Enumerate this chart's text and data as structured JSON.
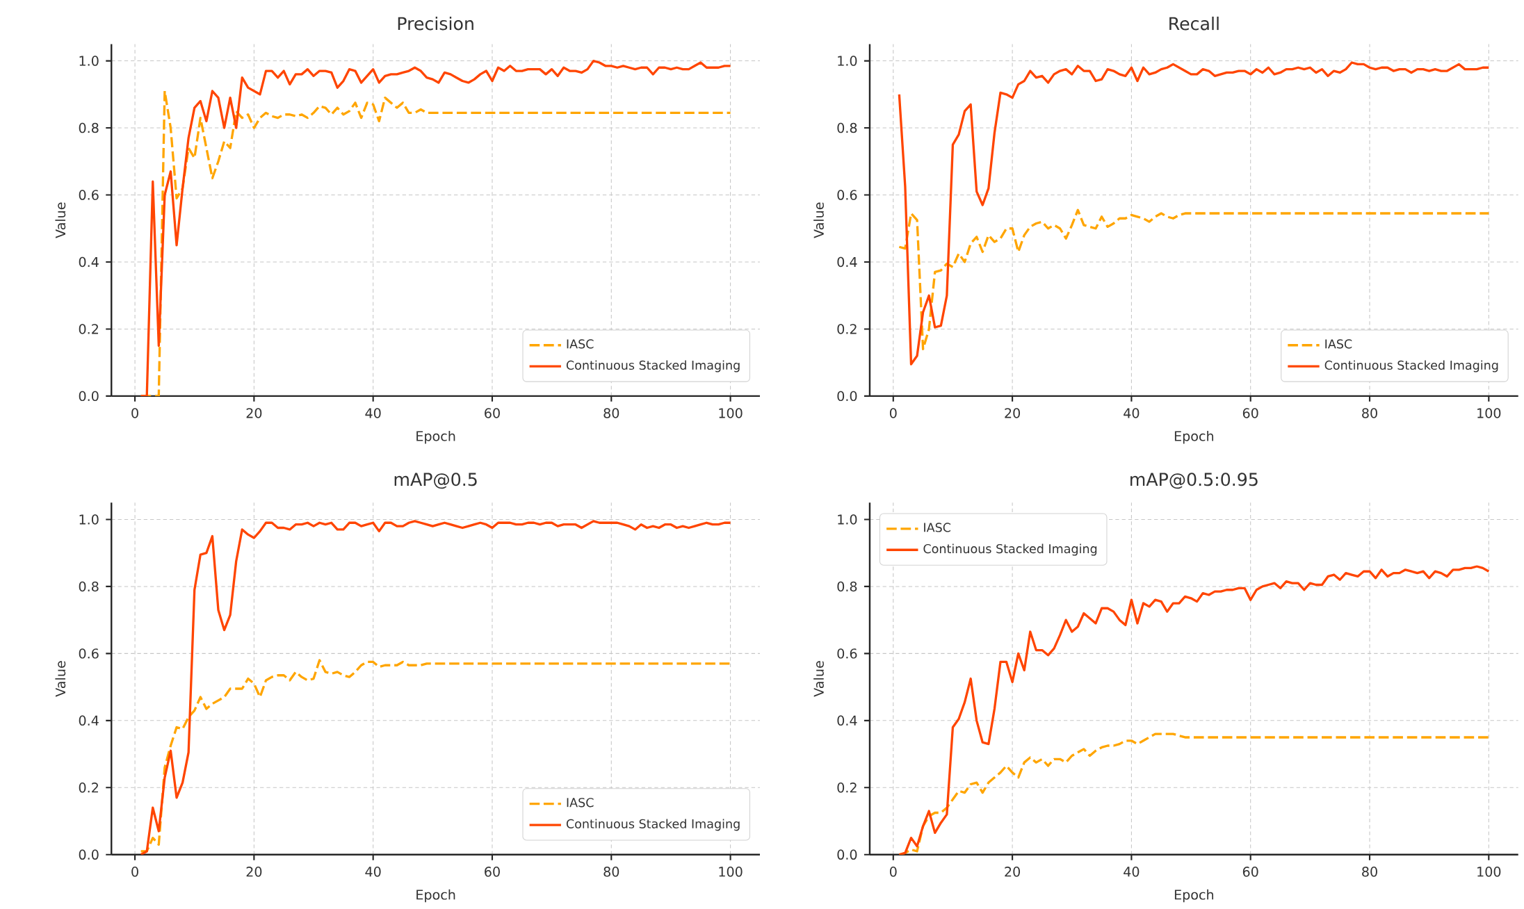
{
  "chart_data": [
    {
      "type": "line",
      "title": "Precision",
      "xlabel": "Epoch",
      "ylabel": "Value",
      "xlim": [
        -3.95,
        104.95
      ],
      "ylim": [
        0,
        1.05
      ],
      "xticks": [
        0,
        20,
        40,
        60,
        80,
        100
      ],
      "yticks": [
        {
          "value": 0,
          "label": "0.0"
        },
        {
          "value": 0.2,
          "label": "0.2"
        },
        {
          "value": 0.4,
          "label": "0.4"
        },
        {
          "value": 0.6,
          "label": "0.6"
        },
        {
          "value": 0.8,
          "label": "0.8"
        },
        {
          "value": 1.0,
          "label": "1.0"
        }
      ],
      "grid": true,
      "legend": "bottom right",
      "x": [
        1,
        2,
        3,
        4,
        5,
        6,
        7,
        8,
        9,
        10,
        11,
        12,
        13,
        14,
        15,
        16,
        17,
        18,
        19,
        20,
        21,
        22,
        23,
        24,
        25,
        26,
        27,
        28,
        29,
        30,
        31,
        32,
        33,
        34,
        35,
        36,
        37,
        38,
        39,
        40,
        41,
        42,
        43,
        44,
        45,
        46,
        47,
        48,
        49,
        50,
        51,
        52,
        53,
        54,
        55,
        56,
        57,
        58,
        59,
        60,
        61,
        62,
        63,
        64,
        65,
        66,
        67,
        68,
        69,
        70,
        71,
        72,
        73,
        74,
        75,
        76,
        77,
        78,
        79,
        80,
        81,
        82,
        83,
        84,
        85,
        86,
        87,
        88,
        89,
        90,
        91,
        92,
        93,
        94,
        95,
        96,
        97,
        98,
        99,
        100
      ],
      "series": [
        {
          "name": "IASC",
          "color": "#ffa500",
          "line_style": "dashed",
          "x": [
            1,
            2,
            3,
            4,
            5,
            6,
            7,
            8,
            9,
            10,
            11,
            12,
            13,
            14,
            15,
            16,
            17,
            18,
            19,
            20,
            21,
            22,
            23,
            24,
            25,
            26,
            27,
            28,
            29,
            30,
            31,
            32,
            33,
            34,
            35,
            36,
            37,
            38,
            39,
            40,
            41,
            42,
            43,
            44,
            45,
            46,
            47,
            48,
            49,
            50,
            100
          ],
          "values": [
            0,
            0,
            0,
            0,
            0.91,
            0.8,
            0.59,
            0.62,
            0.74,
            0.71,
            0.83,
            0.74,
            0.65,
            0.7,
            0.76,
            0.74,
            0.85,
            0.83,
            0.84,
            0.8,
            0.83,
            0.845,
            0.835,
            0.83,
            0.84,
            0.84,
            0.835,
            0.84,
            0.83,
            0.845,
            0.865,
            0.86,
            0.84,
            0.86,
            0.84,
            0.85,
            0.875,
            0.83,
            0.875,
            0.87,
            0.82,
            0.89,
            0.875,
            0.86,
            0.875,
            0.845,
            0.845,
            0.855,
            0.845,
            0.845,
            0.845
          ]
        },
        {
          "name": "Continuous Stacked Imaging",
          "color": "#ff4500",
          "line_style": "solid",
          "values": [
            0,
            0,
            0.64,
            0.15,
            0.6,
            0.67,
            0.45,
            0.62,
            0.77,
            0.86,
            0.88,
            0.82,
            0.91,
            0.89,
            0.8,
            0.89,
            0.8,
            0.95,
            0.92,
            0.91,
            0.9,
            0.97,
            0.97,
            0.95,
            0.97,
            0.93,
            0.96,
            0.96,
            0.975,
            0.955,
            0.97,
            0.97,
            0.965,
            0.92,
            0.94,
            0.975,
            0.97,
            0.935,
            0.955,
            0.975,
            0.935,
            0.955,
            0.96,
            0.96,
            0.965,
            0.97,
            0.98,
            0.97,
            0.95,
            0.945,
            0.935,
            0.965,
            0.96,
            0.95,
            0.94,
            0.935,
            0.945,
            0.96,
            0.97,
            0.94,
            0.98,
            0.97,
            0.985,
            0.97,
            0.97,
            0.975,
            0.975,
            0.975,
            0.96,
            0.975,
            0.955,
            0.98,
            0.97,
            0.97,
            0.965,
            0.975,
            1.0,
            0.995,
            0.985,
            0.985,
            0.98,
            0.985,
            0.98,
            0.975,
            0.98,
            0.98,
            0.96,
            0.98,
            0.98,
            0.975,
            0.98,
            0.975,
            0.975,
            0.985,
            0.995,
            0.98,
            0.98,
            0.98,
            0.985,
            0.985
          ]
        }
      ]
    },
    {
      "type": "line",
      "title": "Recall",
      "xlabel": "Epoch",
      "ylabel": "Value",
      "xlim": [
        -3.95,
        104.95
      ],
      "ylim": [
        0,
        1.05
      ],
      "xticks": [
        0,
        20,
        40,
        60,
        80,
        100
      ],
      "yticks": [
        {
          "value": 0,
          "label": "0.0"
        },
        {
          "value": 0.2,
          "label": "0.2"
        },
        {
          "value": 0.4,
          "label": "0.4"
        },
        {
          "value": 0.6,
          "label": "0.6"
        },
        {
          "value": 0.8,
          "label": "0.8"
        },
        {
          "value": 1.0,
          "label": "1.0"
        }
      ],
      "grid": true,
      "legend": "bottom right",
      "x": [
        1,
        2,
        3,
        4,
        5,
        6,
        7,
        8,
        9,
        10,
        11,
        12,
        13,
        14,
        15,
        16,
        17,
        18,
        19,
        20,
        21,
        22,
        23,
        24,
        25,
        26,
        27,
        28,
        29,
        30,
        31,
        32,
        33,
        34,
        35,
        36,
        37,
        38,
        39,
        40,
        41,
        42,
        43,
        44,
        45,
        46,
        47,
        48,
        49,
        50,
        51,
        52,
        53,
        54,
        55,
        56,
        57,
        58,
        59,
        60,
        61,
        62,
        63,
        64,
        65,
        66,
        67,
        68,
        69,
        70,
        71,
        72,
        73,
        74,
        75,
        76,
        77,
        78,
        79,
        80,
        81,
        82,
        83,
        84,
        85,
        86,
        87,
        88,
        89,
        90,
        91,
        92,
        93,
        94,
        95,
        96,
        97,
        98,
        99,
        100
      ],
      "series": [
        {
          "name": "IASC",
          "color": "#ffa500",
          "line_style": "dashed",
          "x": [
            1,
            2,
            3,
            4,
            5,
            6,
            7,
            8,
            9,
            10,
            11,
            12,
            13,
            14,
            15,
            16,
            17,
            18,
            19,
            20,
            21,
            22,
            23,
            24,
            25,
            26,
            27,
            28,
            29,
            30,
            31,
            32,
            33,
            34,
            35,
            36,
            37,
            38,
            39,
            40,
            41,
            42,
            43,
            44,
            45,
            46,
            47,
            48,
            49,
            50,
            100
          ],
          "values": [
            0.445,
            0.44,
            0.545,
            0.525,
            0.14,
            0.2,
            0.37,
            0.375,
            0.395,
            0.385,
            0.425,
            0.4,
            0.455,
            0.475,
            0.43,
            0.48,
            0.46,
            0.47,
            0.5,
            0.5,
            0.43,
            0.48,
            0.505,
            0.515,
            0.52,
            0.5,
            0.51,
            0.5,
            0.47,
            0.51,
            0.555,
            0.51,
            0.505,
            0.5,
            0.535,
            0.505,
            0.515,
            0.53,
            0.53,
            0.54,
            0.535,
            0.53,
            0.52,
            0.535,
            0.545,
            0.535,
            0.53,
            0.54,
            0.545,
            0.545,
            0.545
          ]
        },
        {
          "name": "Continuous Stacked Imaging",
          "color": "#ff4500",
          "line_style": "solid",
          "values": [
            0.9,
            0.625,
            0.095,
            0.12,
            0.25,
            0.3,
            0.205,
            0.21,
            0.3,
            0.75,
            0.78,
            0.85,
            0.87,
            0.61,
            0.57,
            0.62,
            0.785,
            0.905,
            0.9,
            0.89,
            0.93,
            0.94,
            0.97,
            0.95,
            0.955,
            0.935,
            0.96,
            0.97,
            0.975,
            0.96,
            0.985,
            0.97,
            0.97,
            0.94,
            0.945,
            0.975,
            0.97,
            0.96,
            0.955,
            0.98,
            0.94,
            0.98,
            0.96,
            0.965,
            0.975,
            0.98,
            0.99,
            0.98,
            0.97,
            0.96,
            0.96,
            0.975,
            0.97,
            0.955,
            0.96,
            0.965,
            0.965,
            0.97,
            0.97,
            0.96,
            0.975,
            0.965,
            0.98,
            0.96,
            0.965,
            0.975,
            0.975,
            0.98,
            0.975,
            0.98,
            0.965,
            0.975,
            0.955,
            0.97,
            0.965,
            0.975,
            0.995,
            0.99,
            0.99,
            0.98,
            0.975,
            0.98,
            0.98,
            0.97,
            0.975,
            0.975,
            0.965,
            0.975,
            0.975,
            0.97,
            0.975,
            0.97,
            0.97,
            0.98,
            0.99,
            0.975,
            0.975,
            0.975,
            0.98,
            0.98
          ]
        }
      ]
    },
    {
      "type": "line",
      "title": "mAP@0.5",
      "xlabel": "Epoch",
      "ylabel": "Value",
      "xlim": [
        -3.95,
        104.95
      ],
      "ylim": [
        0,
        1.05
      ],
      "xticks": [
        0,
        20,
        40,
        60,
        80,
        100
      ],
      "yticks": [
        {
          "value": 0,
          "label": "0.0"
        },
        {
          "value": 0.2,
          "label": "0.2"
        },
        {
          "value": 0.4,
          "label": "0.4"
        },
        {
          "value": 0.6,
          "label": "0.6"
        },
        {
          "value": 0.8,
          "label": "0.8"
        },
        {
          "value": 1.0,
          "label": "1.0"
        }
      ],
      "grid": true,
      "legend": "bottom right",
      "x": [
        1,
        2,
        3,
        4,
        5,
        6,
        7,
        8,
        9,
        10,
        11,
        12,
        13,
        14,
        15,
        16,
        17,
        18,
        19,
        20,
        21,
        22,
        23,
        24,
        25,
        26,
        27,
        28,
        29,
        30,
        31,
        32,
        33,
        34,
        35,
        36,
        37,
        38,
        39,
        40,
        41,
        42,
        43,
        44,
        45,
        46,
        47,
        48,
        49,
        50,
        51,
        52,
        53,
        54,
        55,
        56,
        57,
        58,
        59,
        60,
        61,
        62,
        63,
        64,
        65,
        66,
        67,
        68,
        69,
        70,
        71,
        72,
        73,
        74,
        75,
        76,
        77,
        78,
        79,
        80,
        81,
        82,
        83,
        84,
        85,
        86,
        87,
        88,
        89,
        90,
        91,
        92,
        93,
        94,
        95,
        96,
        97,
        98,
        99,
        100
      ],
      "series": [
        {
          "name": "IASC",
          "color": "#ffa500",
          "line_style": "dashed",
          "x": [
            1,
            2,
            3,
            4,
            5,
            6,
            7,
            8,
            9,
            10,
            11,
            12,
            13,
            14,
            15,
            16,
            17,
            18,
            19,
            20,
            21,
            22,
            23,
            24,
            25,
            26,
            27,
            28,
            29,
            30,
            31,
            32,
            33,
            34,
            35,
            36,
            37,
            38,
            39,
            40,
            41,
            42,
            43,
            44,
            45,
            46,
            47,
            48,
            49,
            50,
            100
          ],
          "values": [
            0.01,
            0.01,
            0.05,
            0.03,
            0.26,
            0.325,
            0.38,
            0.375,
            0.41,
            0.43,
            0.47,
            0.435,
            0.45,
            0.46,
            0.47,
            0.495,
            0.495,
            0.495,
            0.525,
            0.51,
            0.47,
            0.52,
            0.53,
            0.535,
            0.535,
            0.52,
            0.545,
            0.53,
            0.52,
            0.525,
            0.58,
            0.545,
            0.54,
            0.545,
            0.535,
            0.53,
            0.545,
            0.565,
            0.575,
            0.575,
            0.56,
            0.565,
            0.565,
            0.565,
            0.575,
            0.565,
            0.565,
            0.565,
            0.57,
            0.57,
            0.57
          ]
        },
        {
          "name": "Continuous Stacked Imaging",
          "color": "#ff4500",
          "line_style": "solid",
          "values": [
            0,
            0.01,
            0.14,
            0.07,
            0.23,
            0.31,
            0.17,
            0.215,
            0.305,
            0.79,
            0.895,
            0.9,
            0.95,
            0.73,
            0.67,
            0.715,
            0.875,
            0.97,
            0.955,
            0.945,
            0.965,
            0.99,
            0.99,
            0.975,
            0.975,
            0.97,
            0.985,
            0.985,
            0.99,
            0.98,
            0.99,
            0.985,
            0.99,
            0.97,
            0.97,
            0.99,
            0.99,
            0.98,
            0.985,
            0.99,
            0.965,
            0.99,
            0.99,
            0.98,
            0.98,
            0.99,
            0.995,
            0.99,
            0.985,
            0.98,
            0.985,
            0.99,
            0.985,
            0.98,
            0.975,
            0.98,
            0.985,
            0.99,
            0.985,
            0.975,
            0.99,
            0.99,
            0.99,
            0.985,
            0.985,
            0.99,
            0.99,
            0.985,
            0.99,
            0.99,
            0.98,
            0.985,
            0.985,
            0.985,
            0.975,
            0.985,
            0.995,
            0.99,
            0.99,
            0.99,
            0.99,
            0.985,
            0.98,
            0.97,
            0.985,
            0.975,
            0.98,
            0.975,
            0.985,
            0.985,
            0.975,
            0.98,
            0.975,
            0.98,
            0.985,
            0.99,
            0.985,
            0.985,
            0.99,
            0.99
          ]
        }
      ]
    },
    {
      "type": "line",
      "title": "mAP@0.5:0.95",
      "xlabel": "Epoch",
      "ylabel": "Value",
      "xlim": [
        -3.95,
        104.95
      ],
      "ylim": [
        0,
        1.05
      ],
      "xticks": [
        0,
        20,
        40,
        60,
        80,
        100
      ],
      "yticks": [
        {
          "value": 0,
          "label": "0.0"
        },
        {
          "value": 0.2,
          "label": "0.2"
        },
        {
          "value": 0.4,
          "label": "0.4"
        },
        {
          "value": 0.6,
          "label": "0.6"
        },
        {
          "value": 0.8,
          "label": "0.8"
        },
        {
          "value": 1.0,
          "label": "1.0"
        }
      ],
      "grid": true,
      "legend": "top left",
      "x": [
        1,
        2,
        3,
        4,
        5,
        6,
        7,
        8,
        9,
        10,
        11,
        12,
        13,
        14,
        15,
        16,
        17,
        18,
        19,
        20,
        21,
        22,
        23,
        24,
        25,
        26,
        27,
        28,
        29,
        30,
        31,
        32,
        33,
        34,
        35,
        36,
        37,
        38,
        39,
        40,
        41,
        42,
        43,
        44,
        45,
        46,
        47,
        48,
        49,
        50,
        51,
        52,
        53,
        54,
        55,
        56,
        57,
        58,
        59,
        60,
        61,
        62,
        63,
        64,
        65,
        66,
        67,
        68,
        69,
        70,
        71,
        72,
        73,
        74,
        75,
        76,
        77,
        78,
        79,
        80,
        81,
        82,
        83,
        84,
        85,
        86,
        87,
        88,
        89,
        90,
        91,
        92,
        93,
        94,
        95,
        96,
        97,
        98,
        99,
        100
      ],
      "series": [
        {
          "name": "IASC",
          "color": "#ffa500",
          "line_style": "dashed",
          "x": [
            1,
            2,
            3,
            4,
            5,
            6,
            7,
            8,
            9,
            10,
            11,
            12,
            13,
            14,
            15,
            16,
            17,
            18,
            19,
            20,
            21,
            22,
            23,
            24,
            25,
            26,
            27,
            28,
            29,
            30,
            31,
            32,
            33,
            34,
            35,
            36,
            37,
            38,
            39,
            40,
            41,
            42,
            43,
            44,
            45,
            46,
            47,
            48,
            49,
            50,
            100
          ],
          "values": [
            0,
            0.005,
            0.015,
            0.01,
            0.085,
            0.115,
            0.125,
            0.125,
            0.14,
            0.165,
            0.19,
            0.185,
            0.21,
            0.215,
            0.185,
            0.215,
            0.23,
            0.245,
            0.265,
            0.245,
            0.23,
            0.275,
            0.29,
            0.275,
            0.285,
            0.265,
            0.285,
            0.285,
            0.275,
            0.295,
            0.305,
            0.315,
            0.295,
            0.31,
            0.32,
            0.325,
            0.325,
            0.33,
            0.34,
            0.34,
            0.33,
            0.34,
            0.35,
            0.36,
            0.36,
            0.36,
            0.36,
            0.355,
            0.35,
            0.35,
            0.35
          ]
        },
        {
          "name": "Continuous Stacked Imaging",
          "color": "#ff4500",
          "line_style": "solid",
          "values": [
            0,
            0.005,
            0.05,
            0.025,
            0.085,
            0.13,
            0.065,
            0.095,
            0.12,
            0.38,
            0.405,
            0.455,
            0.525,
            0.4,
            0.335,
            0.33,
            0.435,
            0.575,
            0.575,
            0.515,
            0.6,
            0.55,
            0.665,
            0.61,
            0.61,
            0.595,
            0.615,
            0.655,
            0.7,
            0.665,
            0.68,
            0.72,
            0.705,
            0.69,
            0.735,
            0.735,
            0.725,
            0.7,
            0.685,
            0.76,
            0.69,
            0.75,
            0.74,
            0.76,
            0.755,
            0.725,
            0.75,
            0.75,
            0.77,
            0.765,
            0.755,
            0.78,
            0.775,
            0.785,
            0.785,
            0.79,
            0.79,
            0.795,
            0.795,
            0.76,
            0.79,
            0.8,
            0.805,
            0.81,
            0.795,
            0.815,
            0.81,
            0.81,
            0.79,
            0.81,
            0.805,
            0.805,
            0.83,
            0.835,
            0.82,
            0.84,
            0.835,
            0.83,
            0.845,
            0.845,
            0.825,
            0.85,
            0.83,
            0.84,
            0.84,
            0.85,
            0.845,
            0.84,
            0.845,
            0.825,
            0.845,
            0.84,
            0.83,
            0.85,
            0.85,
            0.855,
            0.855,
            0.86,
            0.855,
            0.845
          ]
        }
      ]
    }
  ]
}
